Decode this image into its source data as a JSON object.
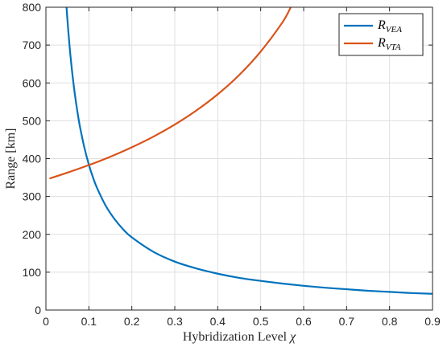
{
  "chart_data": {
    "type": "line",
    "xlabel_prefix": "Hybridization Level ",
    "xlabel_symbol": "χ",
    "ylabel_main": "Range ",
    "ylabel_unit": "[km]",
    "xlim": [
      0,
      0.9
    ],
    "ylim": [
      0,
      800
    ],
    "grid": true,
    "legend_position": "top-right",
    "x_ticks": [
      0,
      0.1,
      0.2,
      0.3,
      0.4,
      0.5,
      0.6,
      0.7,
      0.8,
      0.9
    ],
    "x_tick_labels": [
      "0",
      "0.1",
      "0.2",
      "0.3",
      "0.4",
      "0.5",
      "0.6",
      "0.7",
      "0.8",
      "0.9"
    ],
    "y_ticks": [
      0,
      100,
      200,
      300,
      400,
      500,
      600,
      700,
      800
    ],
    "y_tick_labels": [
      "0",
      "100",
      "200",
      "300",
      "400",
      "500",
      "600",
      "700",
      "800"
    ],
    "series": [
      {
        "name": "R_VEA",
        "legend_main": "R",
        "legend_sub": "VEA",
        "color": "#0072BD",
        "x": [
          0.048,
          0.05,
          0.055,
          0.06,
          0.065,
          0.07,
          0.075,
          0.08,
          0.09,
          0.1,
          0.11,
          0.12,
          0.14,
          0.16,
          0.18,
          0.2,
          0.25,
          0.3,
          0.35,
          0.4,
          0.45,
          0.5,
          0.55,
          0.6,
          0.65,
          0.7,
          0.75,
          0.8,
          0.85,
          0.9
        ],
        "y": [
          800,
          768,
          698,
          640,
          591,
          549,
          512,
          480,
          427,
          384,
          349,
          320,
          274,
          240,
          213,
          192,
          154,
          128,
          110,
          96,
          85,
          77,
          70,
          64,
          59,
          55,
          51,
          48,
          45,
          43
        ]
      },
      {
        "name": "R_VTA",
        "legend_main": "R",
        "legend_sub": "VTA",
        "color": "#D95319",
        "x": [
          0.01,
          0.05,
          0.1,
          0.15,
          0.2,
          0.25,
          0.3,
          0.35,
          0.4,
          0.45,
          0.5,
          0.55,
          0.57
        ],
        "y": [
          348,
          363,
          383,
          405,
          430,
          458,
          490,
          527,
          570,
          621,
          683,
          759,
          800
        ]
      }
    ]
  }
}
